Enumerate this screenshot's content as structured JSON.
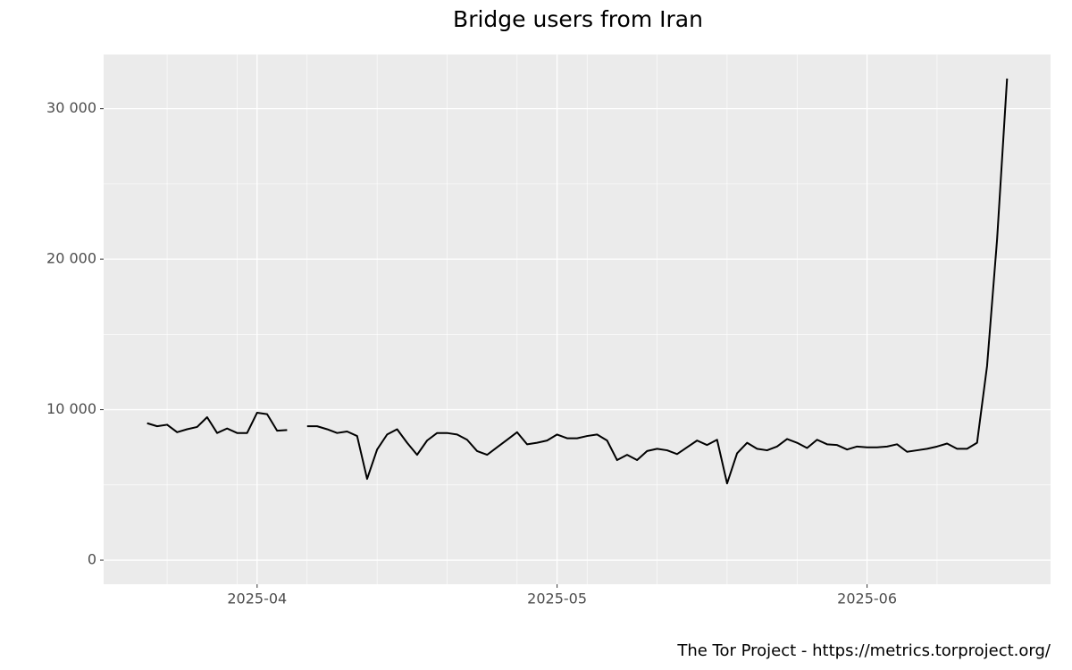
{
  "chart_data": {
    "type": "line",
    "title": "Bridge users from Iran",
    "caption": "The Tor Project - https://metrics.torproject.org/",
    "categories": [
      null,
      null,
      null,
      null,
      null,
      null,
      null,
      null,
      null,
      null,
      null,
      "2025-04",
      null,
      null,
      null,
      null,
      null,
      null,
      null,
      null,
      null,
      null,
      null,
      null,
      null,
      null,
      null,
      null,
      null,
      null,
      null,
      null,
      null,
      null,
      null,
      null,
      null,
      null,
      null,
      null,
      null,
      "2025-05",
      null,
      null,
      null,
      null,
      null,
      null,
      null,
      null,
      null,
      null,
      null,
      null,
      null,
      null,
      null,
      null,
      null,
      null,
      null,
      null,
      null,
      null,
      null,
      null,
      null,
      null,
      null,
      null,
      null,
      null,
      "2025-06",
      null,
      null,
      null,
      null,
      null,
      null,
      null,
      null,
      null,
      null,
      null,
      null,
      null,
      null
    ],
    "values": [
      9100,
      8900,
      9000,
      8500,
      8700,
      8850,
      9500,
      8450,
      8750,
      8450,
      8450,
      9800,
      9700,
      8600,
      8650,
      null,
      8900,
      8900,
      8700,
      8450,
      8550,
      8250,
      5400,
      7350,
      8350,
      8700,
      7800,
      7000,
      7950,
      8450,
      8450,
      8350,
      8000,
      7250,
      7000,
      7500,
      8000,
      8500,
      7700,
      7800,
      7950,
      8350,
      8100,
      8100,
      8250,
      8350,
      7950,
      6650,
      7000,
      6650,
      7250,
      7400,
      7300,
      7050,
      7500,
      7950,
      7650,
      8000,
      5100,
      7100,
      7800,
      7400,
      7300,
      7550,
      8050,
      7800,
      7450,
      8000,
      7700,
      7650,
      7350,
      7550,
      7500,
      7500,
      7550,
      7700,
      7200,
      7300,
      7400,
      7550,
      7750,
      7400,
      7400,
      7800,
      12900,
      21300,
      32000
    ],
    "color": "#000000",
    "ylim": [
      -1600,
      33600
    ],
    "yticks": [
      0,
      {
        "value": 10000,
        "label": "10 000"
      },
      {
        "value": 20000,
        "label": "20 000"
      },
      {
        "value": 30000,
        "label": "30 000"
      }
    ],
    "grid": true
  }
}
